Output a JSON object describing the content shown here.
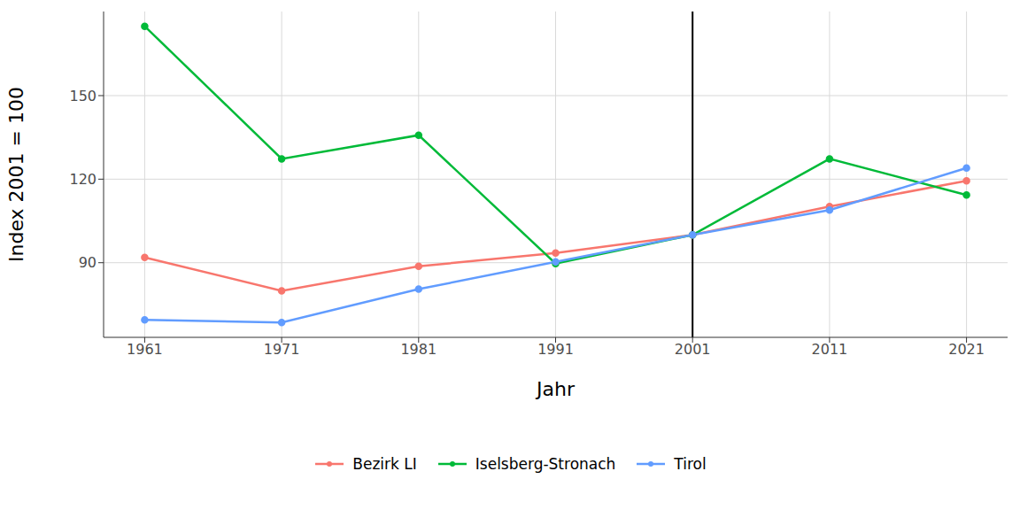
{
  "chart_data": {
    "type": "line",
    "x_label": "Jahr",
    "y_label": "Index 2001 = 100",
    "x": [
      1961,
      1971,
      1981,
      1991,
      2001,
      2011,
      2021
    ],
    "series": [
      {
        "name": "Bezirk LI",
        "color": "#F8766D",
        "marker": "circle",
        "values": [
          91.9,
          79.9,
          88.7,
          93.5,
          100,
          110.2,
          119.4
        ]
      },
      {
        "name": "Iselsberg-Stronach",
        "color": "#00BA38",
        "marker": "circle",
        "values": [
          174.9,
          127.3,
          135.8,
          89.7,
          100,
          127.3,
          114.3
        ]
      },
      {
        "name": "Tirol",
        "color": "#619CFF",
        "marker": "circle",
        "values": [
          69.5,
          68.5,
          80.5,
          90.3,
          100,
          108.9,
          124.0
        ]
      }
    ],
    "xlim": [
      1958,
      2024
    ],
    "xticks": [
      1961,
      1971,
      1981,
      1991,
      2001,
      2011,
      2021
    ],
    "ylim": [
      63.2,
      180.2
    ],
    "yticks": [
      90,
      120,
      150
    ],
    "grid": true,
    "legend": "bottom",
    "reference_lines": [
      {
        "x": 2001,
        "color": "#000000"
      }
    ]
  }
}
